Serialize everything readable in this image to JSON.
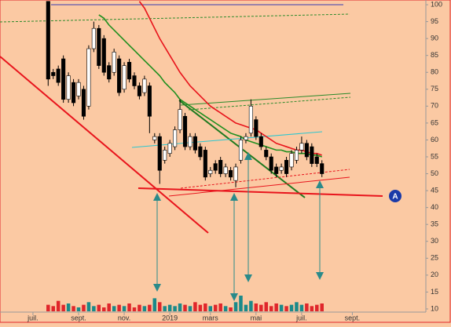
{
  "chart_data": {
    "type": "candlestick",
    "categories": [
      null,
      null,
      null,
      null,
      null,
      null,
      "juil.",
      null,
      null,
      null,
      null,
      null,
      null,
      null,
      null,
      "sept.",
      null,
      null,
      null,
      null,
      null,
      null,
      null,
      null,
      "nov.",
      null,
      null,
      null,
      null,
      null,
      null,
      null,
      null,
      "2019",
      null,
      null,
      null,
      null,
      null,
      null,
      null,
      "mars",
      null,
      null,
      null,
      null,
      null,
      null,
      null,
      null,
      "mai",
      null,
      null,
      null,
      null,
      null,
      null,
      null,
      null,
      "juil.",
      null,
      null,
      null,
      null,
      null,
      null,
      null,
      null,
      null,
      "sept.",
      null,
      null,
      null,
      null,
      null,
      null,
      null,
      null,
      null,
      null,
      null,
      null,
      null,
      null
    ],
    "open": [
      null,
      null,
      null,
      null,
      null,
      null,
      null,
      null,
      null,
      101,
      80,
      81,
      84,
      72,
      77,
      73,
      75,
      70,
      87,
      93,
      90,
      82,
      80,
      84,
      75,
      83,
      79,
      76,
      74,
      76,
      60,
      61,
      54,
      56,
      58,
      63,
      67,
      58,
      61,
      58,
      57,
      50,
      53,
      54,
      50,
      51,
      48,
      54,
      60,
      62,
      66,
      61,
      57,
      55,
      52,
      51,
      54,
      52,
      54,
      57,
      59,
      58,
      55,
      53,
      null,
      null,
      null,
      null,
      null,
      null,
      null,
      null,
      null,
      null,
      null,
      null,
      null,
      null,
      null,
      null,
      null,
      null,
      null,
      null
    ],
    "high": [
      null,
      null,
      null,
      null,
      null,
      null,
      null,
      null,
      null,
      101,
      81,
      82,
      85,
      80,
      78,
      78,
      76,
      88,
      95,
      94,
      91,
      83,
      87,
      85,
      83,
      84,
      80,
      77,
      79,
      77,
      62,
      62,
      58,
      60,
      64,
      72,
      68,
      62,
      62,
      59,
      58,
      52,
      54,
      55,
      53,
      52,
      53,
      61,
      62,
      72,
      67,
      62,
      58,
      56,
      53,
      53,
      55,
      57,
      58,
      61,
      60,
      59,
      56,
      54,
      null,
      null,
      null,
      null,
      null,
      null,
      null,
      null,
      null,
      null,
      null,
      null,
      null,
      null,
      null,
      null,
      null,
      null,
      null,
      null
    ],
    "low": [
      null,
      null,
      null,
      null,
      null,
      null,
      null,
      null,
      null,
      76,
      78,
      76,
      71,
      71,
      70,
      72,
      66,
      69,
      86,
      81,
      79,
      77,
      79,
      73,
      74,
      77,
      75,
      72,
      73,
      62,
      59,
      47,
      53,
      55,
      57,
      62,
      57,
      57,
      56,
      54,
      48,
      49,
      50,
      49,
      49,
      48,
      46,
      53,
      59,
      61,
      60,
      57,
      54,
      50,
      49,
      50,
      49,
      51,
      53,
      56,
      54,
      52,
      52,
      49,
      null,
      null,
      null,
      null,
      null,
      null,
      null,
      null,
      null,
      null,
      null,
      null,
      null,
      null,
      null,
      null,
      null,
      null,
      null,
      null
    ],
    "close": [
      null,
      null,
      null,
      null,
      null,
      null,
      null,
      null,
      null,
      78,
      79,
      77,
      72,
      79,
      71,
      77,
      67,
      87,
      93,
      82,
      80,
      78,
      86,
      74,
      82,
      78,
      76,
      73,
      78,
      67,
      61,
      51,
      57,
      59,
      63,
      69,
      58,
      61,
      57,
      55,
      49,
      51,
      51,
      50,
      52,
      49,
      52,
      60,
      61,
      70,
      61,
      58,
      55,
      51,
      50,
      52,
      50,
      56,
      57,
      59,
      55,
      53,
      53,
      50,
      null,
      null,
      null,
      null,
      null,
      null,
      null,
      null,
      null,
      null,
      null,
      null,
      null,
      null,
      null,
      null,
      null,
      null,
      null,
      null
    ],
    "volume": [
      null,
      null,
      null,
      null,
      null,
      null,
      null,
      null,
      null,
      5,
      4,
      8,
      5,
      6,
      4,
      3,
      5,
      7,
      4,
      5,
      3,
      6,
      4,
      5,
      4,
      6,
      3,
      5,
      4,
      5,
      10,
      7,
      4,
      5,
      4,
      6,
      5,
      4,
      7,
      5,
      6,
      4,
      5,
      6,
      4,
      3,
      7,
      12,
      5,
      8,
      6,
      5,
      7,
      4,
      6,
      5,
      4,
      5,
      7,
      5,
      6,
      4,
      5,
      6,
      null,
      null,
      null,
      null,
      null,
      null,
      null,
      null,
      null,
      null,
      null,
      null,
      null,
      null,
      null,
      null,
      null,
      null,
      null,
      null
    ],
    "up_color": "#ffffff",
    "down_color": "#000000",
    "volume_up_color": "#1a8a8a",
    "volume_down_color": "#e0262b",
    "series": [
      {
        "color": "#1f8f1f",
        "values": [
          null,
          null,
          null,
          null,
          null,
          null,
          null,
          null,
          null,
          null,
          null,
          null,
          null,
          null,
          null,
          null,
          null,
          null,
          null,
          97,
          96,
          94,
          92.5,
          91,
          89.5,
          88,
          86.5,
          85,
          83.5,
          82,
          80.5,
          79,
          77,
          75.5,
          74,
          72,
          71,
          70,
          69,
          68,
          67,
          66,
          65,
          64,
          63,
          62,
          61.5,
          61,
          60,
          59.5,
          59,
          58.5,
          58,
          57.5,
          57,
          57,
          56.5,
          56.5,
          56,
          56,
          56,
          55.5,
          55.5,
          55,
          null,
          null,
          null,
          null,
          null,
          null,
          null,
          null,
          null,
          null,
          null,
          null,
          null,
          null,
          null,
          null,
          null,
          null,
          null,
          null
        ]
      },
      {
        "color": "#e8141c",
        "values": [
          null,
          null,
          null,
          null,
          null,
          null,
          null,
          null,
          null,
          null,
          null,
          null,
          null,
          null,
          null,
          null,
          null,
          null,
          null,
          null,
          null,
          null,
          null,
          null,
          null,
          null,
          null,
          101,
          99,
          96,
          93,
          90,
          87.5,
          85,
          82.5,
          80,
          78,
          76,
          74.5,
          73,
          71.5,
          70,
          69,
          68,
          67,
          66,
          65,
          64.5,
          64,
          63.5,
          63,
          62,
          61,
          60,
          59,
          58.5,
          58,
          57.5,
          57,
          57,
          56.5,
          56,
          56,
          55.5,
          null,
          null,
          null,
          null,
          null,
          null,
          null,
          null,
          null,
          null,
          null,
          null,
          null,
          null,
          null,
          null,
          null,
          null,
          null,
          null
        ]
      }
    ],
    "ylim": [
      8.6,
      101.4
    ],
    "yticks": [
      10,
      15,
      20,
      25,
      30,
      35,
      40,
      45,
      50,
      55,
      60,
      65,
      70,
      75,
      80,
      85,
      90,
      95,
      100
    ],
    "annotation": "A"
  }
}
